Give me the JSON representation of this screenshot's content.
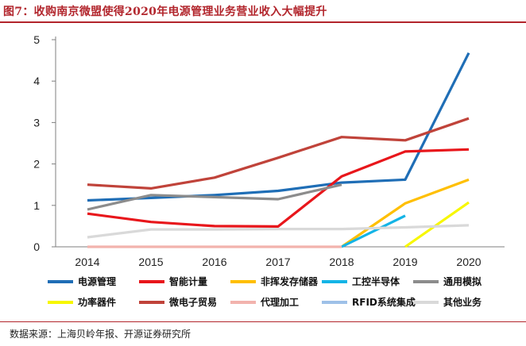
{
  "title": "图7：收购南京微盟使得2020年电源管理业务营业收入大幅提升",
  "source": "数据来源：上海贝岭年报、开源证券研究所",
  "chart_data": {
    "type": "line",
    "x": [
      "2014",
      "2015",
      "2016",
      "2017",
      "2018",
      "2019",
      "2020"
    ],
    "ylim": [
      0,
      5
    ],
    "yticks": [
      "0",
      "1",
      "2",
      "3",
      "4",
      "5"
    ],
    "grid": false,
    "legend_position": "bottom",
    "series": [
      {
        "name": "电源管理",
        "color": "#1f6eb6",
        "values": [
          1.12,
          1.18,
          1.25,
          1.35,
          1.55,
          1.62,
          4.68
        ]
      },
      {
        "name": "智能计量",
        "color": "#e8161b",
        "values": [
          0.8,
          0.6,
          0.5,
          0.49,
          1.7,
          2.3,
          2.35
        ]
      },
      {
        "name": "非挥发存储器",
        "color": "#ffbf00",
        "values": [
          null,
          null,
          null,
          null,
          0.0,
          1.05,
          1.62
        ]
      },
      {
        "name": "工控半导体",
        "color": "#14b4e6",
        "values": [
          null,
          null,
          null,
          null,
          0.0,
          0.75,
          null
        ]
      },
      {
        "name": "通用模拟",
        "color": "#8c8c8c",
        "values": [
          0.9,
          1.25,
          1.2,
          1.15,
          1.5,
          null,
          null
        ]
      },
      {
        "name": "功率器件",
        "color": "#f7f700",
        "values": [
          null,
          null,
          null,
          null,
          null,
          0.0,
          1.07
        ]
      },
      {
        "name": "微电子贸易",
        "color": "#c0433a",
        "values": [
          1.5,
          1.41,
          1.67,
          2.15,
          2.65,
          2.57,
          3.1
        ]
      },
      {
        "name": "代理加工",
        "color": "#f2b3ad",
        "values": [
          0.0,
          0.0,
          0.0,
          0.0,
          0.0,
          null,
          null
        ]
      },
      {
        "name": "RFID系统集成",
        "color": "#9ec1e8",
        "values": [
          null,
          null,
          null,
          null,
          null,
          null,
          null
        ]
      },
      {
        "name": "其他业务",
        "color": "#d9d9d9",
        "values": [
          0.23,
          0.42,
          0.42,
          0.43,
          0.43,
          0.47,
          0.52
        ]
      }
    ]
  }
}
